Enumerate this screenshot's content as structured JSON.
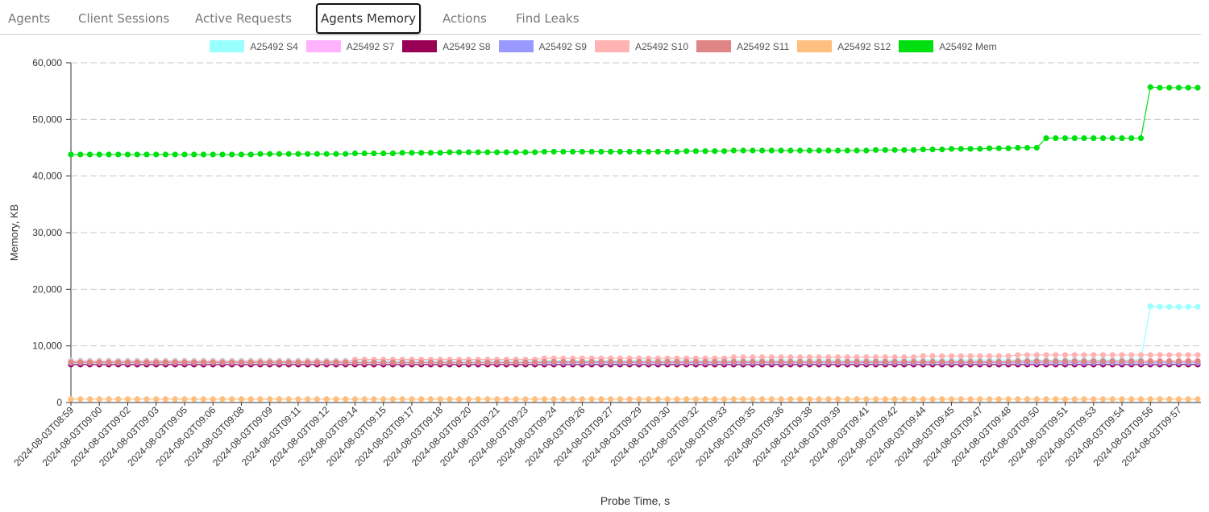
{
  "tabs": [
    "Agents",
    "Client Sessions",
    "Active Requests",
    "Agents Memory",
    "Actions",
    "Find Leaks"
  ],
  "active_tab": 3,
  "chart_data": {
    "type": "line",
    "y_label": "Memory, KB",
    "x_label": "Probe Time, s",
    "legend": "top",
    "grid": true,
    "ylim": [
      0,
      60000
    ],
    "yticks": [
      0,
      {
        "value": 10000,
        "label": "10,000"
      },
      {
        "value": 20000,
        "label": "20,000"
      },
      {
        "value": 30000,
        "label": "30,000"
      },
      {
        "value": 40000,
        "label": "40,000"
      },
      {
        "value": 50000,
        "label": "50,000"
      },
      {
        "value": 60000,
        "label": "60,000"
      }
    ],
    "categories": [
      "2024-08-03T08:59",
      null,
      null,
      "2024-08-03T09:00",
      null,
      null,
      "2024-08-03T09:02",
      null,
      null,
      "2024-08-03T09:03",
      null,
      null,
      "2024-08-03T09:05",
      null,
      null,
      "2024-08-03T09:06",
      null,
      null,
      "2024-08-03T09:08",
      null,
      null,
      "2024-08-03T09:09",
      null,
      null,
      "2024-08-03T09:11",
      null,
      null,
      "2024-08-03T09:12",
      null,
      null,
      "2024-08-03T09:14",
      null,
      null,
      "2024-08-03T09:15",
      null,
      null,
      "2024-08-03T09:17",
      null,
      null,
      "2024-08-03T09:18",
      null,
      null,
      "2024-08-03T09:20",
      null,
      null,
      "2024-08-03T09:21",
      null,
      null,
      "2024-08-03T09:23",
      null,
      null,
      "2024-08-03T09:24",
      null,
      null,
      "2024-08-03T09:26",
      null,
      null,
      "2024-08-03T09:27",
      null,
      null,
      "2024-08-03T09:29",
      null,
      null,
      "2024-08-03T09:30",
      null,
      null,
      "2024-08-03T09:32",
      null,
      null,
      "2024-08-03T09:33",
      null,
      null,
      "2024-08-03T09:35",
      null,
      null,
      "2024-08-03T09:36",
      null,
      null,
      "2024-08-03T09:38",
      null,
      null,
      "2024-08-03T09:39",
      null,
      null,
      "2024-08-03T09:41",
      null,
      null,
      "2024-08-03T09:42",
      null,
      null,
      "2024-08-03T09:44",
      null,
      null,
      "2024-08-03T09:45",
      null,
      null,
      "2024-08-03T09:47",
      null,
      null,
      "2024-08-03T09:48",
      null,
      null,
      "2024-08-03T09:50",
      null,
      null,
      "2024-08-03T09:51",
      null,
      null,
      "2024-08-03T09:53",
      null,
      null,
      "2024-08-03T09:54",
      null,
      null,
      "2024-08-03T09:56",
      null,
      null,
      "2024-08-03T09:57",
      null,
      null
    ],
    "series": [
      {
        "name": "A25492 S4",
        "color": "#99ffff",
        "values": [
          7400,
          7400,
          7400,
          7400,
          7400,
          7400,
          7400,
          7400,
          7400,
          7400,
          7400,
          7400,
          7400,
          7400,
          7400,
          7400,
          7400,
          7400,
          7400,
          7400,
          7400,
          7400,
          7400,
          7400,
          7400,
          7400,
          7400,
          7400,
          7400,
          7400,
          7400,
          7400,
          7400,
          7400,
          7400,
          7400,
          7400,
          7400,
          7400,
          7400,
          7400,
          7400,
          7400,
          7400,
          7400,
          7400,
          7400,
          7400,
          7400,
          7400,
          7400,
          7400,
          7400,
          7400,
          7400,
          7400,
          7400,
          7400,
          7400,
          7400,
          7500,
          7500,
          7500,
          7500,
          7500,
          7500,
          7500,
          7500,
          7500,
          7500,
          7500,
          7500,
          7500,
          7500,
          7500,
          7500,
          7500,
          7500,
          7500,
          7500,
          7500,
          7500,
          7500,
          7500,
          7500,
          7500,
          7500,
          7500,
          7500,
          7500,
          7500,
          7500,
          7500,
          7500,
          7500,
          7500,
          7500,
          7500,
          7500,
          7500,
          7500,
          7500,
          7500,
          7500,
          7500,
          7500,
          7500,
          7500,
          7500,
          7500,
          7500,
          7500,
          7500,
          7600,
          17000,
          16900,
          16900,
          16900,
          16900,
          16900
        ]
      },
      {
        "name": "A25492 S7",
        "color": "#ffb3ff",
        "values": [
          7100,
          7100,
          7100,
          7100,
          7100,
          7100,
          7100,
          7100,
          7100,
          7100,
          7100,
          7100,
          7100,
          7100,
          7100,
          7100,
          7100,
          7100,
          7100,
          7100,
          7100,
          7100,
          7100,
          7100,
          7100,
          7100,
          7100,
          7100,
          7100,
          7100,
          7100,
          7100,
          7100,
          7100,
          7100,
          7100,
          7100,
          7100,
          7100,
          7100,
          7100,
          7100,
          7100,
          7100,
          7100,
          7100,
          7100,
          7100,
          7100,
          7100,
          7100,
          7100,
          7100,
          7100,
          7100,
          7100,
          7100,
          7100,
          7100,
          7100,
          7100,
          7100,
          7100,
          7100,
          7100,
          7100,
          7100,
          7100,
          7100,
          7100,
          7100,
          7100,
          7100,
          7100,
          7100,
          7100,
          7100,
          7100,
          7100,
          7100,
          7100,
          7100,
          7100,
          7100,
          7100,
          7100,
          7100,
          7100,
          7100,
          7100,
          7100,
          7100,
          7100,
          7100,
          7100,
          7100,
          7100,
          7100,
          7100,
          7100,
          7300,
          7300,
          7300,
          7300,
          7300,
          7300,
          7300,
          7300,
          7300,
          7300,
          7300,
          7300,
          7300,
          7300,
          7300,
          7300,
          7300,
          7300,
          7300,
          7300
        ]
      },
      {
        "name": "A25492 S8",
        "color": "#990055",
        "values": [
          6700,
          6700,
          6700,
          6700,
          6700,
          6700,
          6700,
          6700,
          6700,
          6700,
          6700,
          6700,
          6700,
          6700,
          6700,
          6700,
          6700,
          6700,
          6700,
          6700,
          6700,
          6700,
          6700,
          6700,
          6700,
          6700,
          6700,
          6700,
          6700,
          6700,
          6700,
          6700,
          6700,
          6700,
          6700,
          6700,
          6700,
          6700,
          6700,
          6700,
          6700,
          6700,
          6700,
          6700,
          6700,
          6700,
          6700,
          6700,
          6700,
          6700,
          6700,
          6700,
          6700,
          6700,
          6700,
          6700,
          6700,
          6700,
          6700,
          6700,
          6700,
          6700,
          6700,
          6700,
          6700,
          6700,
          6700,
          6700,
          6700,
          6700,
          6700,
          6700,
          6700,
          6700,
          6700,
          6700,
          6700,
          6700,
          6700,
          6700,
          6700,
          6700,
          6700,
          6700,
          6700,
          6700,
          6700,
          6700,
          6700,
          6700,
          6700,
          6700,
          6700,
          6700,
          6700,
          6700,
          6700,
          6700,
          6700,
          6700,
          6700,
          6700,
          6700,
          6700,
          6700,
          6700,
          6700,
          6700,
          6700,
          6700,
          6700,
          6700,
          6700,
          6700,
          6700,
          6700,
          6700,
          6700,
          6700,
          6700
        ]
      },
      {
        "name": "A25492 S9",
        "color": "#9999ff",
        "values": [
          7000,
          7000,
          7000,
          7000,
          7000,
          7000,
          7000,
          7000,
          7000,
          7000,
          7000,
          7000,
          7000,
          7000,
          7000,
          7000,
          7000,
          7000,
          7000,
          7000,
          7000,
          7000,
          7000,
          7000,
          7000,
          7000,
          7000,
          7000,
          7000,
          7000,
          7000,
          7000,
          7000,
          7000,
          7000,
          7000,
          7000,
          7000,
          7000,
          7000,
          7000,
          7000,
          7000,
          7000,
          7000,
          7000,
          7000,
          7000,
          7000,
          7000,
          7000,
          7000,
          7000,
          7000,
          7000,
          7000,
          7000,
          7000,
          7000,
          7000,
          7000,
          7000,
          7000,
          7000,
          7000,
          7000,
          7000,
          7000,
          7000,
          7000,
          7000,
          7000,
          7000,
          7000,
          7000,
          7000,
          7000,
          7000,
          7000,
          7000,
          7000,
          7000,
          7000,
          7000,
          7000,
          7000,
          7000,
          7000,
          7000,
          7000,
          7000,
          7000,
          7000,
          7000,
          7000,
          7000,
          7000,
          7000,
          7000,
          7000,
          7000,
          7000,
          7000,
          7000,
          7000,
          7000,
          7000,
          7000,
          7000,
          7000,
          7000,
          7000,
          7000,
          7000,
          7000,
          7000,
          7000,
          7000,
          7000,
          7000
        ]
      },
      {
        "name": "A25492 S10",
        "color": "#ffb3b3",
        "values": [
          7300,
          7300,
          7300,
          7300,
          7300,
          7300,
          7300,
          7300,
          7300,
          7300,
          7300,
          7300,
          7300,
          7300,
          7300,
          7300,
          7300,
          7300,
          7300,
          7300,
          7300,
          7300,
          7300,
          7300,
          7300,
          7300,
          7300,
          7300,
          7300,
          7300,
          7600,
          7600,
          7600,
          7600,
          7600,
          7600,
          7600,
          7600,
          7600,
          7600,
          7600,
          7600,
          7600,
          7600,
          7600,
          7600,
          7600,
          7600,
          7600,
          7600,
          7800,
          7800,
          7800,
          7800,
          7800,
          7800,
          7800,
          7800,
          7800,
          7800,
          7800,
          7800,
          7800,
          7800,
          7800,
          7800,
          7800,
          7800,
          7800,
          7800,
          8000,
          8000,
          8000,
          8000,
          8000,
          8000,
          8000,
          8000,
          8000,
          8000,
          8000,
          8000,
          8000,
          8000,
          8000,
          8000,
          8000,
          8000,
          8000,
          8000,
          8200,
          8200,
          8200,
          8200,
          8200,
          8200,
          8200,
          8200,
          8200,
          8200,
          8400,
          8400,
          8400,
          8400,
          8400,
          8400,
          8400,
          8400,
          8400,
          8400,
          8400,
          8400,
          8400,
          8400,
          8400,
          8400,
          8400,
          8400,
          8400,
          8400
        ]
      },
      {
        "name": "A25492 S11",
        "color": "#e08585",
        "values": [
          7100,
          7100,
          7100,
          7100,
          7100,
          7100,
          7100,
          7100,
          7100,
          7100,
          7100,
          7100,
          7100,
          7100,
          7100,
          7100,
          7100,
          7100,
          7100,
          7100,
          7100,
          7100,
          7100,
          7100,
          7100,
          7100,
          7100,
          7100,
          7100,
          7100,
          7100,
          7100,
          7100,
          7100,
          7100,
          7100,
          7100,
          7100,
          7100,
          7100,
          7100,
          7100,
          7100,
          7100,
          7100,
          7100,
          7100,
          7100,
          7100,
          7100,
          7200,
          7200,
          7200,
          7200,
          7200,
          7200,
          7200,
          7200,
          7200,
          7200,
          7200,
          7200,
          7200,
          7200,
          7200,
          7200,
          7200,
          7200,
          7200,
          7200,
          7200,
          7200,
          7200,
          7200,
          7200,
          7200,
          7200,
          7200,
          7200,
          7200,
          7200,
          7200,
          7200,
          7200,
          7200,
          7200,
          7200,
          7200,
          7200,
          7200,
          7200,
          7200,
          7200,
          7200,
          7200,
          7200,
          7200,
          7200,
          7200,
          7200,
          7300,
          7300,
          7300,
          7300,
          7300,
          7300,
          7300,
          7300,
          7300,
          7300,
          7300,
          7300,
          7300,
          7300,
          7300,
          7300,
          7300,
          7300,
          7300,
          7300
        ]
      },
      {
        "name": "A25492 S12",
        "color": "#ffbf80",
        "values": [
          600,
          600,
          600,
          600,
          600,
          600,
          600,
          600,
          600,
          600,
          600,
          600,
          600,
          600,
          600,
          600,
          600,
          600,
          600,
          600,
          600,
          600,
          600,
          600,
          600,
          600,
          600,
          600,
          600,
          600,
          600,
          600,
          600,
          600,
          600,
          600,
          600,
          600,
          600,
          600,
          600,
          600,
          600,
          600,
          600,
          600,
          600,
          600,
          600,
          600,
          600,
          600,
          600,
          600,
          600,
          600,
          600,
          600,
          600,
          600,
          600,
          600,
          600,
          600,
          600,
          600,
          600,
          600,
          600,
          600,
          600,
          600,
          600,
          600,
          600,
          600,
          600,
          600,
          600,
          600,
          600,
          600,
          600,
          600,
          600,
          600,
          600,
          600,
          600,
          600,
          600,
          600,
          600,
          600,
          600,
          600,
          600,
          600,
          600,
          600,
          600,
          600,
          600,
          600,
          600,
          600,
          600,
          600,
          600,
          600,
          600,
          600,
          600,
          600,
          600,
          600,
          600,
          600,
          600,
          600
        ]
      },
      {
        "name": "A25492 Mem",
        "color": "#00e010",
        "values": [
          43800,
          43800,
          43800,
          43800,
          43800,
          43800,
          43800,
          43800,
          43800,
          43800,
          43800,
          43800,
          43800,
          43800,
          43800,
          43800,
          43800,
          43800,
          43800,
          43800,
          43900,
          43900,
          43900,
          43900,
          43900,
          43900,
          43900,
          43900,
          43900,
          43900,
          44000,
          44000,
          44000,
          44000,
          44000,
          44100,
          44100,
          44100,
          44100,
          44100,
          44200,
          44200,
          44200,
          44200,
          44200,
          44200,
          44200,
          44200,
          44200,
          44200,
          44300,
          44300,
          44300,
          44300,
          44300,
          44300,
          44300,
          44300,
          44300,
          44300,
          44300,
          44300,
          44300,
          44300,
          44300,
          44400,
          44400,
          44400,
          44400,
          44400,
          44500,
          44500,
          44500,
          44500,
          44500,
          44500,
          44500,
          44500,
          44500,
          44500,
          44500,
          44500,
          44500,
          44500,
          44500,
          44600,
          44600,
          44600,
          44600,
          44600,
          44700,
          44700,
          44700,
          44800,
          44800,
          44800,
          44800,
          44900,
          44900,
          44900,
          45000,
          45000,
          45000,
          46700,
          46700,
          46700,
          46700,
          46700,
          46700,
          46700,
          46700,
          46700,
          46700,
          46700,
          55700,
          55600,
          55600,
          55600,
          55600,
          55600
        ]
      }
    ]
  }
}
